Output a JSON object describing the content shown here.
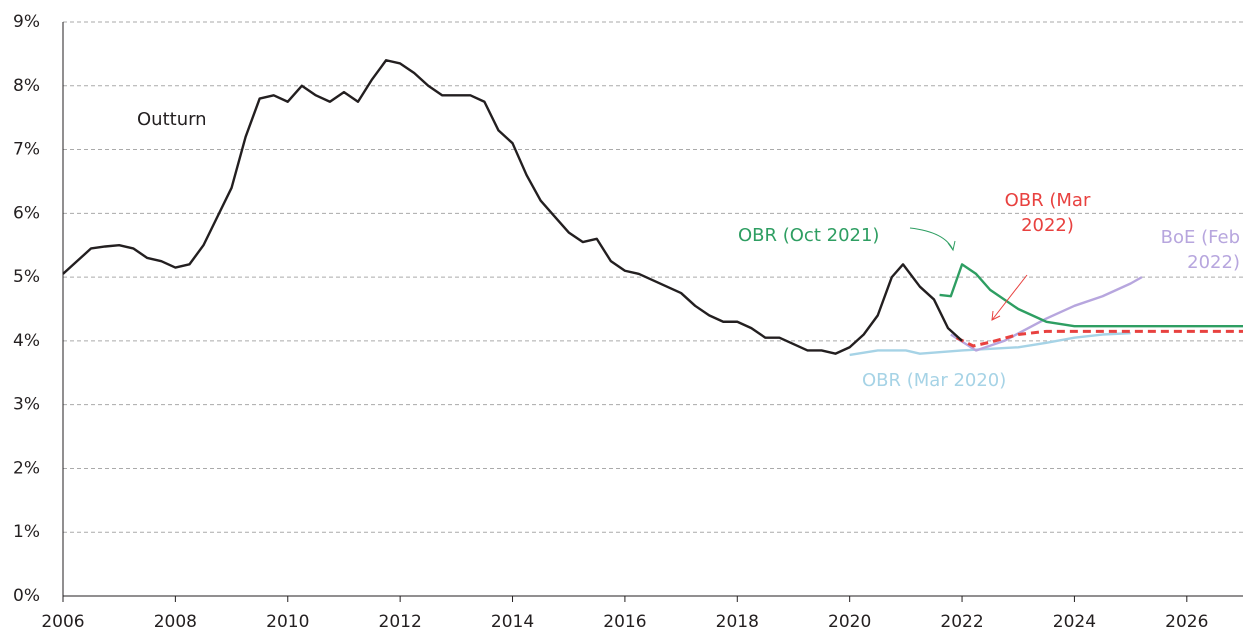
{
  "chart_data": {
    "type": "line",
    "xlim": [
      2006,
      2027
    ],
    "xticks": [
      2006,
      2008,
      2010,
      2012,
      2014,
      2016,
      2018,
      2020,
      2022,
      2024,
      2026
    ],
    "ylim": [
      0,
      9
    ],
    "yticks": [
      {
        "value": 0,
        "label": "0%"
      },
      {
        "value": 1,
        "label": "1%"
      },
      {
        "value": 2,
        "label": "2%"
      },
      {
        "value": 3,
        "label": "3%"
      },
      {
        "value": 4,
        "label": "4%"
      },
      {
        "value": 5,
        "label": "5%"
      },
      {
        "value": 6,
        "label": "6%"
      },
      {
        "value": 7,
        "label": "7%"
      },
      {
        "value": 8,
        "label": "8%"
      },
      {
        "value": 9,
        "label": "9%"
      }
    ],
    "grid": true,
    "series": [
      {
        "name": "Outturn",
        "color": "#231f20",
        "dashed": false,
        "x": [
          2006.0,
          2006.25,
          2006.5,
          2006.75,
          2007.0,
          2007.25,
          2007.5,
          2007.75,
          2008.0,
          2008.25,
          2008.5,
          2008.75,
          2009.0,
          2009.25,
          2009.5,
          2009.75,
          2010.0,
          2010.25,
          2010.5,
          2010.75,
          2011.0,
          2011.25,
          2011.5,
          2011.75,
          2012.0,
          2012.25,
          2012.5,
          2012.75,
          2013.0,
          2013.25,
          2013.5,
          2013.75,
          2014.0,
          2014.25,
          2014.5,
          2014.75,
          2015.0,
          2015.25,
          2015.5,
          2015.75,
          2016.0,
          2016.25,
          2016.5,
          2016.75,
          2017.0,
          2017.25,
          2017.5,
          2017.75,
          2018.0,
          2018.25,
          2018.5,
          2018.75,
          2019.0,
          2019.25,
          2019.5,
          2019.75,
          2020.0,
          2020.25,
          2020.5,
          2020.75,
          2020.95,
          2021.25,
          2021.5,
          2021.75,
          2022.0
        ],
        "values": [
          5.05,
          5.25,
          5.45,
          5.48,
          5.5,
          5.45,
          5.3,
          5.25,
          5.15,
          5.2,
          5.5,
          5.95,
          6.4,
          7.2,
          7.8,
          7.85,
          7.75,
          8.0,
          7.85,
          7.75,
          7.9,
          7.75,
          8.1,
          8.4,
          8.35,
          8.2,
          8.0,
          7.85,
          7.85,
          7.85,
          7.75,
          7.3,
          7.1,
          6.6,
          6.2,
          5.95,
          5.7,
          5.55,
          5.6,
          5.25,
          5.1,
          5.05,
          4.95,
          4.85,
          4.75,
          4.55,
          4.4,
          4.3,
          4.3,
          4.2,
          4.05,
          4.05,
          3.95,
          3.85,
          3.85,
          3.8,
          3.9,
          4.1,
          4.4,
          5.0,
          5.2,
          4.85,
          4.65,
          4.2,
          4.0
        ]
      },
      {
        "name": "OBR (Oct 2021)",
        "color": "#2e9e62",
        "dashed": false,
        "x": [
          2021.6,
          2021.8,
          2022.0,
          2022.25,
          2022.5,
          2023.0,
          2023.5,
          2024.0,
          2027.0
        ],
        "values": [
          4.72,
          4.7,
          5.2,
          5.05,
          4.8,
          4.5,
          4.3,
          4.23,
          4.23
        ]
      },
      {
        "name": "OBR (Mar 2022)",
        "color": "#e8413f",
        "dashed": true,
        "x": [
          2021.9,
          2022.2,
          2022.5,
          2023.0,
          2023.5,
          2024.0,
          2027.0
        ],
        "values": [
          4.05,
          3.92,
          3.98,
          4.1,
          4.15,
          4.15,
          4.15
        ]
      },
      {
        "name": "BoE (Feb 2022)",
        "color": "#b7a6de",
        "dashed": false,
        "x": [
          2021.8,
          2022.25,
          2022.75,
          2023.5,
          2024.0,
          2024.5,
          2025.0,
          2025.2
        ],
        "values": [
          4.1,
          3.85,
          4.0,
          4.35,
          4.55,
          4.7,
          4.9,
          5.0
        ]
      },
      {
        "name": "OBR (Mar 2020)",
        "color": "#a6d3e6",
        "dashed": false,
        "x": [
          2020.0,
          2020.5,
          2021.0,
          2021.25,
          2022.0,
          2023.0,
          2023.5,
          2024.0,
          2024.5,
          2025.0
        ],
        "values": [
          3.78,
          3.85,
          3.85,
          3.8,
          3.85,
          3.9,
          3.97,
          4.05,
          4.1,
          4.12
        ]
      }
    ]
  }
}
